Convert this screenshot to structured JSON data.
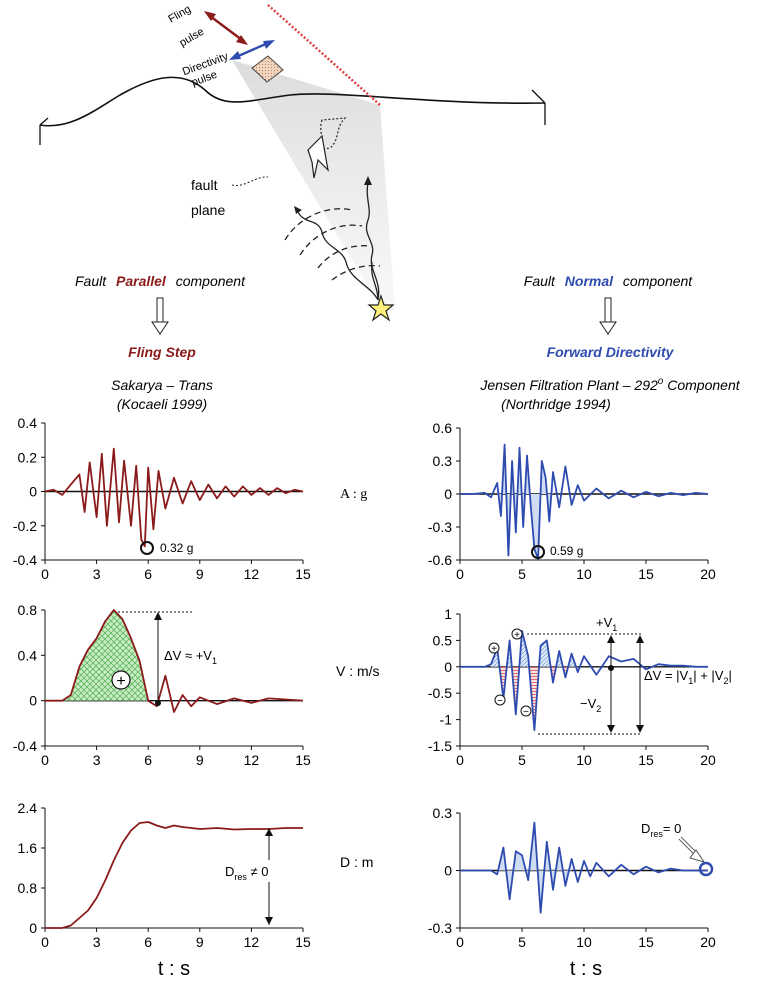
{
  "colors": {
    "fling": "#8b1a1a",
    "directivity": "#2e4bb0",
    "green_fill": "#5cc35c",
    "blue_fill": "#9fc3e6",
    "red_fill": "#e04a4a"
  },
  "schematic": {
    "fling_pulse": "Fling\npulse",
    "directivity_pulse": "Directivity\npulse",
    "fault_label": "fault",
    "plane_label": "plane"
  },
  "left": {
    "component_prefix": "Fault",
    "component_word": "Parallel",
    "component_suffix": "component",
    "heading": "Fling  Step",
    "record_line1": "Sakarya – Trans",
    "record_line2": "(Kocaeli 1999)"
  },
  "right": {
    "component_prefix": "Fault",
    "component_word": "Normal",
    "component_suffix": "component",
    "heading": "Forward  Directivity",
    "record_line1": "Jensen Filtration Plant – 292",
    "record_sup": "o",
    "record_line1_end": " Component",
    "record_line2": "(Northridge 1994)"
  },
  "row_labels": {
    "acc": "A : g",
    "vel": "V : m/s",
    "disp": "D : m"
  },
  "xlabels": {
    "left": "t : s",
    "right": "t : s"
  },
  "annotations": {
    "left_peak_acc": "0.32 g",
    "right_peak_acc": "0.59 g",
    "left_dv": "ΔV ≈ +V",
    "left_dv_sub": "1",
    "left_plus": "+",
    "right_v1": "+V",
    "right_v1_sub": "1",
    "right_v2": "−V",
    "right_v2_sub": "2",
    "right_dv": "ΔV = |V",
    "right_dv_mid": "| + |V",
    "right_dv_end": "|",
    "dres_left": "D",
    "dres_left_sub": "res",
    "dres_left_end": " ≠ 0",
    "dres_right": "D",
    "dres_right_sub": "res",
    "dres_right_end": "= 0",
    "plus_sign": "+",
    "minus_sign": "−"
  },
  "chart_data": [
    {
      "type": "line",
      "id": "left_acc",
      "ylim": [
        -0.4,
        0.4
      ],
      "yticks": [
        "0.4",
        "0.2",
        "0",
        "-0.2",
        "-0.4"
      ],
      "xlim": [
        0,
        15
      ],
      "xticks": [
        "0",
        "3",
        "6",
        "9",
        "12",
        "15"
      ],
      "x": [
        0,
        0.5,
        1,
        1.5,
        2,
        2.3,
        2.6,
        3,
        3.3,
        3.6,
        4,
        4.3,
        4.6,
        5,
        5.3,
        5.6,
        5.8,
        6,
        6.3,
        6.6,
        7,
        7.5,
        8,
        8.5,
        9,
        9.5,
        10,
        10.5,
        11,
        11.5,
        12,
        12.5,
        13,
        13.5,
        14,
        14.5,
        15
      ],
      "y": [
        0,
        0.01,
        -0.02,
        0.04,
        0.1,
        -0.12,
        0.17,
        -0.15,
        0.22,
        -0.2,
        0.25,
        -0.18,
        0.18,
        -0.2,
        0.15,
        -0.28,
        -0.32,
        0.14,
        -0.22,
        0.12,
        -0.1,
        0.08,
        -0.07,
        0.06,
        -0.05,
        0.04,
        -0.04,
        0.03,
        -0.03,
        0.03,
        -0.02,
        0.02,
        -0.02,
        0.02,
        -0.01,
        0.01,
        0
      ]
    },
    {
      "type": "line",
      "id": "right_acc",
      "ylim": [
        -0.6,
        0.6
      ],
      "yticks": [
        "0.6",
        "0.3",
        "0",
        "-0.3",
        "-0.6"
      ],
      "xlim": [
        0,
        20
      ],
      "xticks": [
        "0",
        "5",
        "10",
        "15",
        "20"
      ],
      "x": [
        0,
        1,
        2,
        2.5,
        3,
        3.3,
        3.6,
        3.9,
        4.2,
        4.5,
        4.8,
        5.1,
        5.4,
        5.7,
        6,
        6.3,
        6.6,
        6.9,
        7.2,
        7.5,
        8,
        8.5,
        9,
        9.5,
        10,
        11,
        12,
        13,
        14,
        15,
        16,
        17,
        18,
        19,
        20
      ],
      "y": [
        0,
        0,
        0.01,
        -0.03,
        0.1,
        -0.2,
        0.45,
        -0.56,
        0.3,
        -0.35,
        0.42,
        -0.3,
        0.35,
        -0.1,
        -0.5,
        -0.59,
        0.3,
        0.15,
        -0.25,
        0.2,
        -0.12,
        0.25,
        -0.1,
        0.08,
        -0.06,
        0.05,
        -0.04,
        0.03,
        -0.03,
        0.02,
        -0.02,
        0.01,
        -0.01,
        0.01,
        0
      ]
    },
    {
      "type": "area",
      "id": "left_vel",
      "ylim": [
        -0.4,
        0.8
      ],
      "yticks": [
        "0.8",
        "0.4",
        "0",
        "-0.4"
      ],
      "xlim": [
        0,
        15
      ],
      "xticks": [
        "0",
        "3",
        "6",
        "9",
        "12",
        "15"
      ],
      "x": [
        0,
        1,
        1.5,
        2,
        2.5,
        3,
        3.5,
        4,
        4.5,
        5,
        5.5,
        6,
        6.5,
        7,
        7.5,
        8,
        8.5,
        9,
        10,
        11,
        12,
        13,
        14,
        15
      ],
      "y": [
        0,
        0,
        0.05,
        0.3,
        0.45,
        0.55,
        0.7,
        0.8,
        0.72,
        0.55,
        0.35,
        0,
        -0.05,
        0.22,
        -0.1,
        0.05,
        -0.05,
        0.03,
        -0.03,
        0.02,
        -0.02,
        0.02,
        0.01,
        0
      ]
    },
    {
      "type": "area",
      "id": "right_vel",
      "ylim": [
        -1.5,
        1
      ],
      "yticks": [
        "1",
        "0.5",
        "0",
        "-0.5",
        "-1",
        "-1.5"
      ],
      "xlim": [
        0,
        20
      ],
      "xticks": [
        "0",
        "5",
        "10",
        "15",
        "20"
      ],
      "x": [
        0,
        2,
        2.5,
        3,
        3.5,
        4,
        4.5,
        5,
        5.5,
        6,
        6.5,
        7,
        7.5,
        8,
        8.5,
        9,
        9.5,
        10,
        11,
        12,
        13,
        14,
        15,
        16,
        17,
        18,
        19,
        20
      ],
      "y": [
        0,
        0,
        0.05,
        0.35,
        -0.6,
        0.5,
        -0.9,
        0.68,
        0.2,
        -1.2,
        0.4,
        0.5,
        -0.3,
        0.3,
        -0.2,
        0.25,
        -0.1,
        0.2,
        -0.15,
        0.2,
        0.1,
        0.15,
        -0.05,
        0.05,
        0.02,
        0.02,
        0,
        0
      ]
    },
    {
      "type": "line",
      "id": "left_disp",
      "ylim": [
        0,
        2.4
      ],
      "yticks": [
        "2.4",
        "1.6",
        "0.8",
        "0"
      ],
      "xlim": [
        0,
        15
      ],
      "xticks": [
        "0",
        "3",
        "6",
        "9",
        "12",
        "15"
      ],
      "x": [
        0,
        1,
        1.5,
        2,
        2.5,
        3,
        3.5,
        4,
        4.5,
        5,
        5.5,
        6,
        6.5,
        7,
        7.5,
        8,
        9,
        10,
        11,
        12,
        13,
        14,
        15
      ],
      "y": [
        0,
        0,
        0.05,
        0.2,
        0.35,
        0.6,
        0.95,
        1.35,
        1.7,
        1.95,
        2.1,
        2.12,
        2.05,
        2.0,
        2.05,
        2.02,
        1.98,
        2.0,
        1.97,
        1.98,
        1.98,
        2.0,
        2.0
      ]
    },
    {
      "type": "line",
      "id": "right_disp",
      "ylim": [
        -0.3,
        0.3
      ],
      "yticks": [
        "0.3",
        "0",
        "-0.3"
      ],
      "xlim": [
        0,
        20
      ],
      "xticks": [
        "0",
        "5",
        "10",
        "15",
        "20"
      ],
      "x": [
        0,
        2.5,
        3,
        3.5,
        4,
        4.5,
        5,
        5.5,
        6,
        6.5,
        7,
        7.5,
        8,
        8.5,
        9,
        9.5,
        10,
        10.5,
        11,
        12,
        13,
        14,
        15,
        16,
        17,
        18,
        19,
        20
      ],
      "y": [
        0,
        0,
        -0.02,
        0.12,
        -0.15,
        0.1,
        0.08,
        -0.05,
        0.25,
        -0.22,
        0.15,
        -0.1,
        0.12,
        -0.08,
        0.06,
        -0.06,
        0.05,
        -0.03,
        0.04,
        -0.03,
        0.03,
        -0.02,
        0.02,
        -0.01,
        0.01,
        0,
        0,
        0
      ]
    }
  ]
}
